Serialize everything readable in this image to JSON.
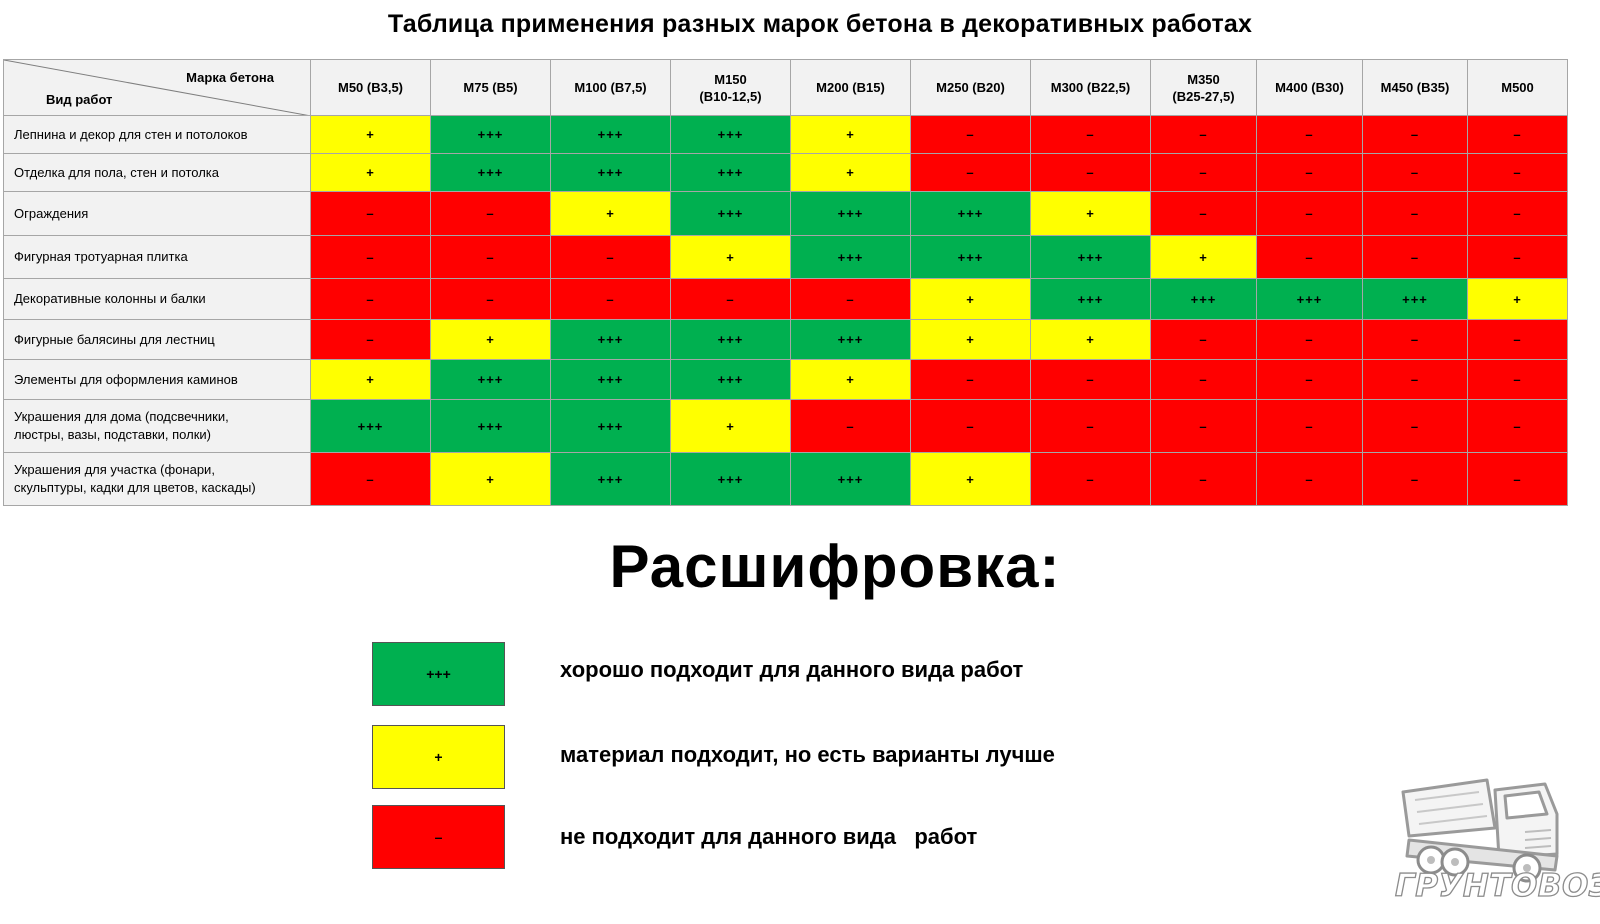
{
  "title": "Таблица применения разных марок бетона в  декоративных работах",
  "table": {
    "corner_top": "Марка бетона",
    "corner_bottom": "Вид работ",
    "columns": [
      [
        "М50 (В3,5)"
      ],
      [
        "М75 (В5)"
      ],
      [
        "М100 (В7,5)"
      ],
      [
        "М150",
        "(В10-12,5)"
      ],
      [
        "М200 (В15)"
      ],
      [
        "М250 (В20)"
      ],
      [
        "М300 (В22,5)"
      ],
      [
        "М350",
        "(В25-27,5)"
      ],
      [
        "М400 (В30)"
      ],
      [
        "М450 (В35)"
      ],
      [
        "М500"
      ]
    ],
    "rows": [
      {
        "work": [
          "Лепнина и декор для стен и потолоков"
        ],
        "cells": [
          "+",
          "+++",
          "+++",
          "+++",
          "+",
          "–",
          "–",
          "–",
          "–",
          "–",
          "–"
        ]
      },
      {
        "work": [
          "Отделка для пола, стен и потолка"
        ],
        "cells": [
          "+",
          "+++",
          "+++",
          "+++",
          "+",
          "–",
          "–",
          "–",
          "–",
          "–",
          "–"
        ]
      },
      {
        "work": [
          "Ограждения"
        ],
        "cells": [
          "–",
          "–",
          "+",
          "+++",
          "+++",
          "+++",
          "+",
          "–",
          "–",
          "–",
          "–"
        ]
      },
      {
        "work": [
          "Фигурная тротуарная плитка"
        ],
        "cells": [
          "–",
          "–",
          "–",
          "+",
          "+++",
          "+++",
          "+++",
          "+",
          "–",
          "–",
          "–"
        ]
      },
      {
        "work": [
          "Декоративные колонны и балки"
        ],
        "cells": [
          "–",
          "–",
          "–",
          "–",
          "–",
          "+",
          "+++",
          "+++",
          "+++",
          "+++",
          "+"
        ]
      },
      {
        "work": [
          "Фигурные балясины для лестниц"
        ],
        "cells": [
          "–",
          "+",
          "+++",
          "+++",
          "+++",
          "+",
          "+",
          "–",
          "–",
          "–",
          "–"
        ]
      },
      {
        "work": [
          "Элементы для оформления каминов"
        ],
        "cells": [
          "+",
          "+++",
          "+++",
          "+++",
          "+",
          "–",
          "–",
          "–",
          "–",
          "–",
          "–"
        ]
      },
      {
        "work": [
          "Украшения для дома (подсвечники,",
          "люстры, вазы, подставки, полки)"
        ],
        "cells": [
          "+++",
          "+++",
          "+++",
          "+",
          "–",
          "–",
          "–",
          "–",
          "–",
          "–",
          "–"
        ]
      },
      {
        "work": [
          "Украшения для участка (фонари,",
          "скульптуры, кадки для цветов, каскады)"
        ],
        "cells": [
          "–",
          "+",
          "+++",
          "+++",
          "+++",
          "+",
          "–",
          "–",
          "–",
          "–",
          "–"
        ]
      }
    ]
  },
  "legend": {
    "title": "Расшифровка:",
    "items": [
      {
        "symbol": "+++",
        "text": "хорошо подходит для данного вида работ"
      },
      {
        "symbol": "+",
        "text": "материал подходит, но есть варианты лучше"
      },
      {
        "symbol": "–",
        "text": "не подходит для данного вида   работ"
      }
    ]
  },
  "colors": {
    "good": "#00b050",
    "ok": "#ffff00",
    "bad": "#ff0000",
    "header_bg": "#f2f2f2"
  },
  "logo": {
    "text": "ГРУНТОВОЗОВ",
    "icon": "dump-truck-icon"
  }
}
